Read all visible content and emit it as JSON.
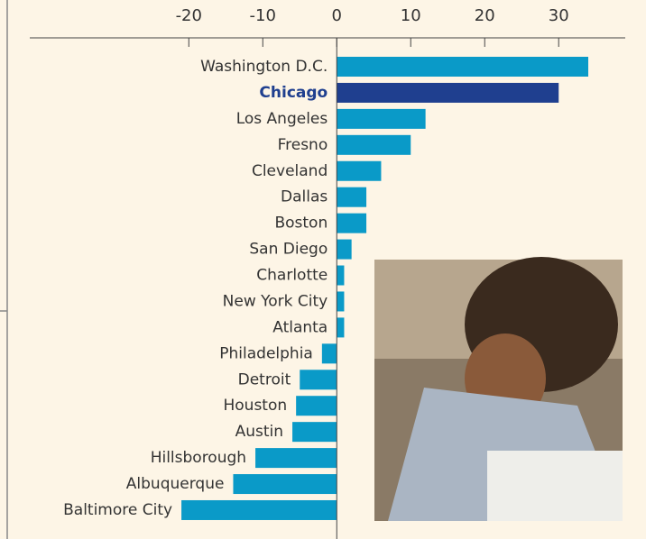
{
  "chart_data": {
    "type": "bar",
    "orientation": "horizontal",
    "categories": [
      "Washington D.C.",
      "Chicago",
      "Los Angeles",
      "Fresno",
      "Cleveland",
      "Dallas",
      "Boston",
      "San Diego",
      "Charlotte",
      "New York City",
      "Atlanta",
      "Philadelphia",
      "Detroit",
      "Houston",
      "Austin",
      "Hillsborough",
      "Albuquerque",
      "Baltimore City"
    ],
    "values": [
      34,
      30,
      12,
      10,
      6,
      4,
      4,
      2,
      1,
      1,
      1,
      -2,
      -5,
      -5.5,
      -6,
      -11,
      -14,
      -21
    ],
    "color": "#0a9ac8",
    "highlight_index": 1,
    "highlight_color": "#1f3f8f",
    "xlim": [
      -41.5,
      39
    ],
    "xticks": [
      -20,
      -10,
      0,
      10,
      20,
      30
    ]
  }
}
